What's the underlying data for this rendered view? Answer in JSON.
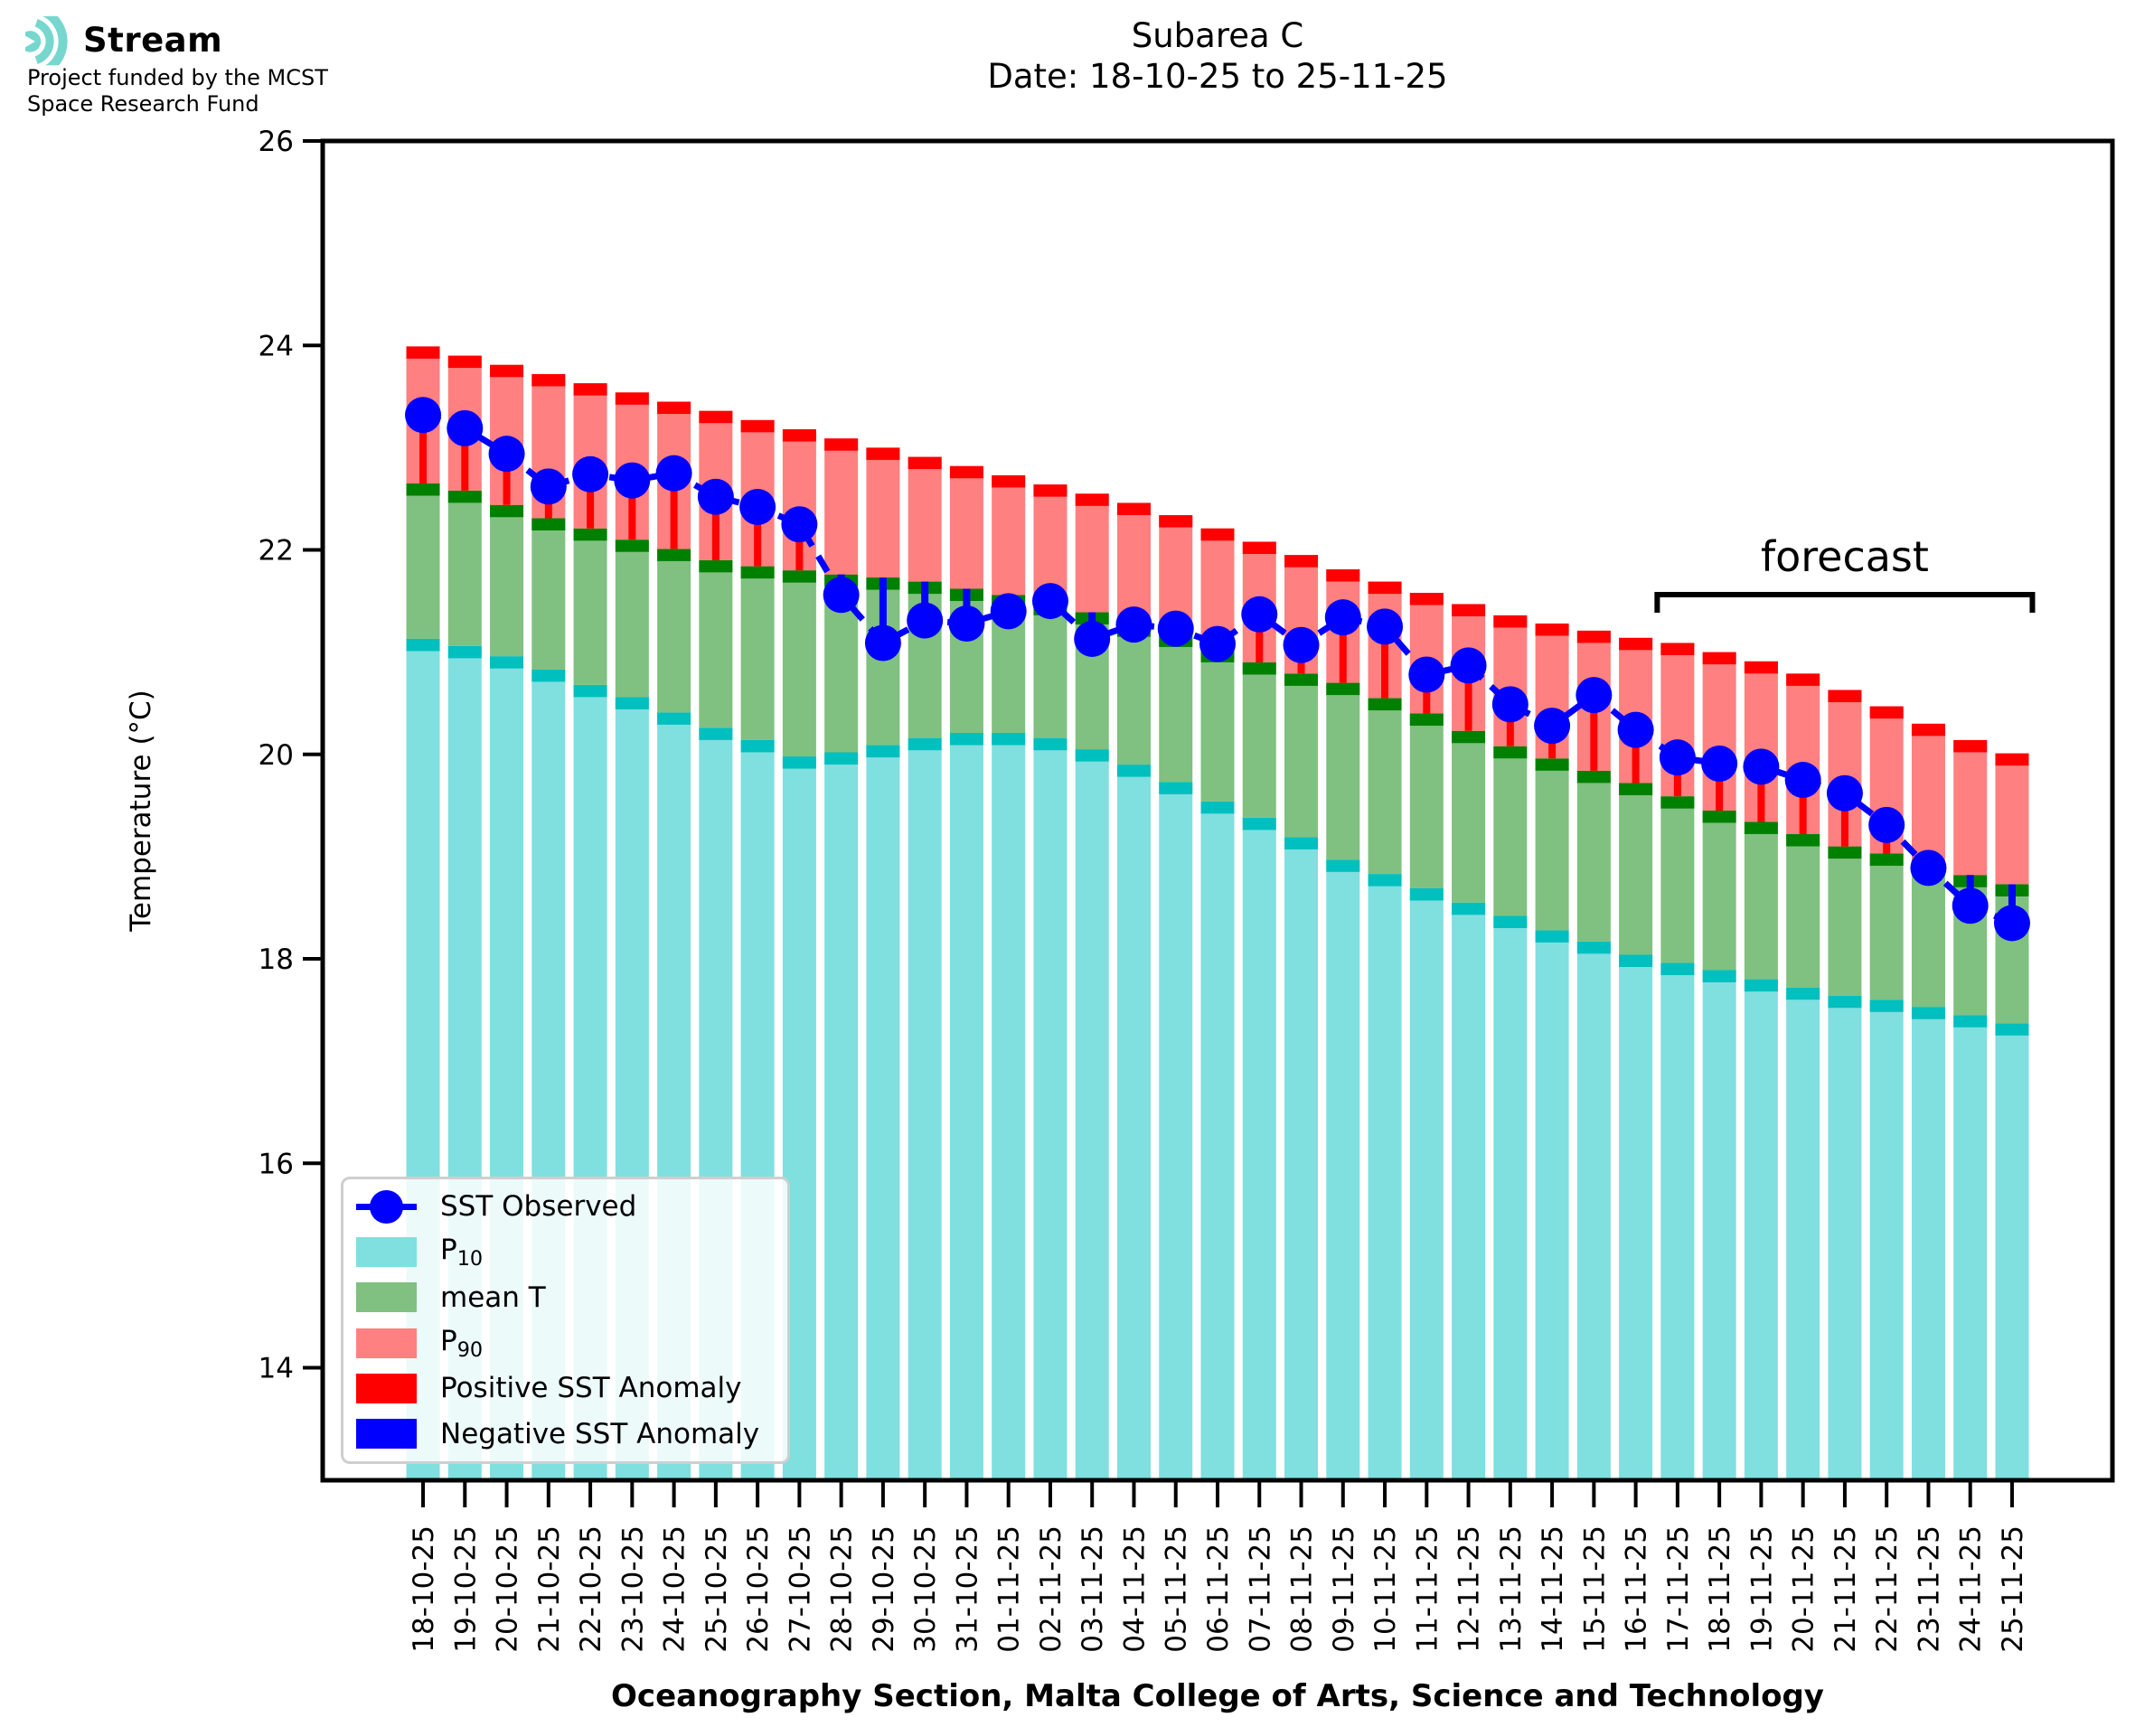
{
  "logo": {
    "title": "Stream",
    "subtitle_line1": "Project funded by the MCST",
    "subtitle_line2": "Space Research Fund",
    "icon": "stream-ripple-icon",
    "icon_color": "#76d7ce"
  },
  "title": {
    "line1": "Subarea C",
    "line2": "Date: 18-10-25 to 25-11-25"
  },
  "axes": {
    "y_label": "Temperature (°C)",
    "x_label": "Oceanography Section, Malta College of Arts, Science and Technology",
    "y_ticks": [
      26,
      24,
      22,
      20,
      18,
      16,
      14
    ],
    "ylim": [
      12.9,
      26
    ]
  },
  "legend": {
    "items": [
      {
        "label": "SST Observed",
        "key": "blue-line-dot"
      },
      {
        "label": "P",
        "sub": "10",
        "key": "p10-swatch"
      },
      {
        "label": "mean T",
        "key": "mean-swatch"
      },
      {
        "label": "P",
        "sub": "90",
        "key": "p90-swatch"
      },
      {
        "label": "Positive SST Anomaly",
        "key": "pos-anomaly-swatch"
      },
      {
        "label": "Negative SST Anomaly",
        "key": "neg-anomaly-swatch"
      }
    ]
  },
  "chart_data": {
    "type": "bar",
    "title": "Subarea C",
    "subtitle": "Date: 18-10-25 to 25-11-25",
    "xlabel": "Oceanography Section, Malta College of Arts, Science and Technology",
    "ylabel": "Temperature (°C)",
    "ylim": [
      12.9,
      26
    ],
    "yticks": [
      26,
      24,
      22,
      20,
      18,
      16,
      14
    ],
    "grid": false,
    "legend_position": "lower left",
    "dates": [
      "18-10-25",
      "19-10-25",
      "20-10-25",
      "21-10-25",
      "22-10-25",
      "23-10-25",
      "24-10-25",
      "25-10-25",
      "26-10-25",
      "27-10-25",
      "28-10-25",
      "29-10-25",
      "30-10-25",
      "31-10-25",
      "01-11-25",
      "02-11-25",
      "03-11-25",
      "04-11-25",
      "05-11-25",
      "06-11-25",
      "07-11-25",
      "08-11-25",
      "09-11-25",
      "10-11-25",
      "11-11-25",
      "12-11-25",
      "13-11-25",
      "14-11-25",
      "15-11-25",
      "16-11-25",
      "17-11-25",
      "18-11-25",
      "19-11-25",
      "20-11-25",
      "21-11-25",
      "22-11-25",
      "23-11-25",
      "24-11-25",
      "25-11-25"
    ],
    "series": [
      {
        "name": "P10",
        "values": [
          21.13,
          21.06,
          20.96,
          20.83,
          20.68,
          20.56,
          20.41,
          20.26,
          20.14,
          19.98,
          20.02,
          20.09,
          20.16,
          20.21,
          20.21,
          20.16,
          20.05,
          19.9,
          19.73,
          19.54,
          19.38,
          19.19,
          18.97,
          18.83,
          18.69,
          18.55,
          18.42,
          18.28,
          18.17,
          18.04,
          17.96,
          17.89,
          17.8,
          17.72,
          17.64,
          17.6,
          17.53,
          17.45,
          17.37
        ]
      },
      {
        "name": "mean T",
        "values": [
          22.65,
          22.58,
          22.44,
          22.31,
          22.21,
          22.1,
          22.01,
          21.9,
          21.84,
          21.8,
          21.76,
          21.73,
          21.69,
          21.62,
          21.56,
          21.48,
          21.39,
          21.27,
          21.17,
          21.02,
          20.9,
          20.79,
          20.7,
          20.55,
          20.4,
          20.23,
          20.08,
          19.96,
          19.84,
          19.72,
          19.59,
          19.45,
          19.34,
          19.22,
          19.1,
          19.03,
          18.94,
          18.82,
          18.73
        ]
      },
      {
        "name": "P90",
        "values": [
          23.99,
          23.9,
          23.81,
          23.72,
          23.63,
          23.54,
          23.45,
          23.36,
          23.27,
          23.18,
          23.09,
          23.0,
          22.91,
          22.82,
          22.73,
          22.64,
          22.55,
          22.46,
          22.34,
          22.21,
          22.08,
          21.95,
          21.81,
          21.69,
          21.58,
          21.47,
          21.36,
          21.28,
          21.21,
          21.14,
          21.09,
          21.0,
          20.91,
          20.79,
          20.63,
          20.47,
          20.3,
          20.14,
          20.01
        ]
      },
      {
        "name": "SST Observed",
        "values": [
          23.32,
          23.19,
          22.94,
          22.62,
          22.74,
          22.68,
          22.75,
          22.52,
          22.42,
          22.25,
          21.56,
          21.09,
          21.31,
          21.28,
          21.4,
          21.5,
          21.13,
          21.27,
          21.23,
          21.08,
          21.37,
          21.07,
          21.34,
          21.25,
          20.78,
          20.87,
          20.49,
          20.28,
          20.58,
          20.24,
          19.97,
          19.91,
          19.88,
          19.75,
          19.62,
          19.31,
          18.89,
          18.52,
          18.35
        ]
      }
    ],
    "forecast": {
      "label": "forecast",
      "start_date": "17-11-25",
      "end_date": "25-11-25"
    },
    "colors": {
      "p10_fill": "#80dfdf",
      "p10_edge": "#00bfbf",
      "mean_fill": "#80c080",
      "mean_edge": "#008000",
      "p90_fill": "#ff8080",
      "p90_edge": "#ff0000",
      "positive_anomaly": "#ff0000",
      "negative_anomaly": "#0000ff",
      "observed": "#0000ff",
      "axis": "#000000"
    }
  }
}
